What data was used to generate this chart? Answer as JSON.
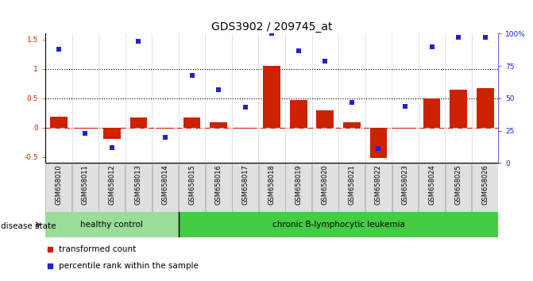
{
  "title": "GDS3902 / 209745_at",
  "samples": [
    "GSM658010",
    "GSM658011",
    "GSM658012",
    "GSM658013",
    "GSM658014",
    "GSM658015",
    "GSM658016",
    "GSM658017",
    "GSM658018",
    "GSM658019",
    "GSM658020",
    "GSM658021",
    "GSM658022",
    "GSM658023",
    "GSM658024",
    "GSM658025",
    "GSM658026"
  ],
  "bar_values": [
    0.19,
    -0.02,
    -0.19,
    0.18,
    -0.02,
    0.18,
    0.1,
    -0.01,
    1.05,
    0.47,
    0.3,
    0.09,
    -0.52,
    -0.02,
    0.5,
    0.65,
    0.68
  ],
  "dot_values_pct": [
    88,
    23,
    12,
    94,
    20,
    68,
    57,
    43,
    100,
    87,
    79,
    47,
    11,
    44,
    90,
    97,
    97
  ],
  "bar_color": "#cc2200",
  "dot_color": "#2222cc",
  "healthy_control_count": 5,
  "healthy_color": "#99dd99",
  "leukemia_color": "#44cc44",
  "ylim": [
    -0.6,
    1.6
  ],
  "y2lim": [
    0,
    100
  ],
  "yticks_left": [
    -0.5,
    0.0,
    0.5,
    1.0,
    1.5
  ],
  "ytick_labels_left": [
    "-0.5",
    "0",
    "0.5",
    "1",
    "1.5"
  ],
  "y2ticks": [
    0,
    25,
    50,
    75,
    100
  ],
  "y2tick_labels": [
    "0",
    "25",
    "50",
    "75",
    "100%"
  ],
  "hline1": 1.0,
  "hline2": 0.5,
  "zero_line": 0.0,
  "disease_state_label": "disease state",
  "group1_label": "healthy control",
  "group2_label": "chronic B-lymphocytic leukemia",
  "legend_bar_label": "transformed count",
  "legend_dot_label": "percentile rank within the sample",
  "title_fontsize": 10,
  "tick_fontsize": 6.5,
  "label_fontsize": 7.5
}
